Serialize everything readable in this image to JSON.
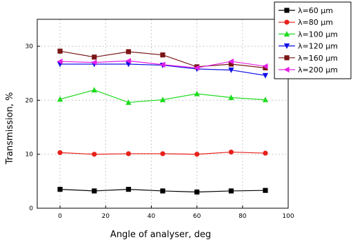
{
  "chart_data": {
    "type": "line",
    "xlabel": "Angle of analyser, deg",
    "ylabel": "Transmission, %",
    "xlim": [
      -10,
      100
    ],
    "ylim": [
      0,
      35
    ],
    "xticks": [
      "0",
      "20",
      "40",
      "60",
      "80",
      "100"
    ],
    "yticks": [
      "0",
      "10",
      "20",
      "30"
    ],
    "grid": true,
    "legend_position": "top-right-outside",
    "x": [
      0,
      15,
      30,
      45,
      60,
      75,
      90
    ],
    "series": [
      {
        "name": "λ=60 µm",
        "marker": "square",
        "color": "#000000",
        "values": [
          3.5,
          3.2,
          3.5,
          3.2,
          3.0,
          3.2,
          3.3
        ]
      },
      {
        "name": "λ=80 µm",
        "marker": "circle",
        "color": "#e8201a",
        "values": [
          10.3,
          10.0,
          10.1,
          10.1,
          10.0,
          10.4,
          10.2
        ]
      },
      {
        "name": "λ=100 µm",
        "marker": "triangle-up",
        "color": "#1fdc1f",
        "values": [
          20.2,
          21.9,
          19.6,
          20.1,
          21.2,
          20.5,
          20.1
        ]
      },
      {
        "name": "λ=120 µm",
        "marker": "triangle-down",
        "color": "#1010e6",
        "values": [
          26.7,
          26.7,
          26.7,
          26.5,
          25.8,
          25.6,
          24.6
        ]
      },
      {
        "name": "λ=160 µm",
        "marker": "square",
        "color": "#7a1616",
        "values": [
          29.1,
          28.0,
          29.0,
          28.4,
          26.2,
          26.7,
          26.0
        ]
      },
      {
        "name": "λ=200 µm",
        "marker": "triangle-left",
        "color": "#e61ee6",
        "values": [
          27.2,
          27.0,
          27.3,
          26.6,
          26.0,
          27.2,
          26.3
        ]
      }
    ]
  }
}
